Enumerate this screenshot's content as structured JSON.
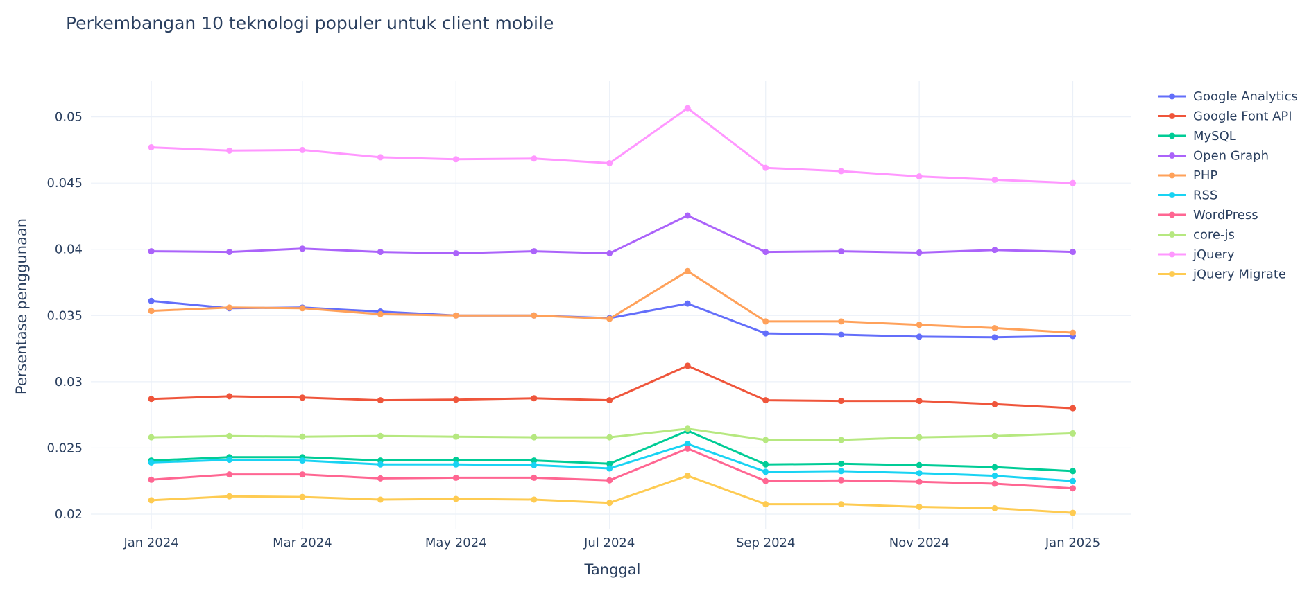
{
  "chart_data": {
    "type": "line",
    "title": "Perkembangan 10 teknologi populer untuk client mobile",
    "xlabel": "Tanggal",
    "ylabel": "Persentase penggunaan",
    "x": [
      "2024-01-01",
      "2024-02-01",
      "2024-03-01",
      "2024-04-01",
      "2024-05-01",
      "2024-06-01",
      "2024-07-01",
      "2024-08-01",
      "2024-09-01",
      "2024-10-01",
      "2024-11-01",
      "2024-12-01",
      "2025-01-01"
    ],
    "x_ticks": [
      {
        "date": "2024-01-01",
        "label": "Jan 2024"
      },
      {
        "date": "2024-03-01",
        "label": "Mar 2024"
      },
      {
        "date": "2024-05-01",
        "label": "May 2024"
      },
      {
        "date": "2024-07-01",
        "label": "Jul 2024"
      },
      {
        "date": "2024-09-01",
        "label": "Sep 2024"
      },
      {
        "date": "2024-11-01",
        "label": "Nov 2024"
      },
      {
        "date": "2025-01-01",
        "label": "Jan 2025"
      }
    ],
    "xlim": [
      "2023-12-08",
      "2025-01-24"
    ],
    "ylim": [
      0.0189,
      0.0527
    ],
    "y_ticks": [
      0.02,
      0.025,
      0.03,
      0.035,
      0.04,
      0.045,
      0.05
    ],
    "y_tick_labels": [
      "0.02",
      "0.025",
      "0.03",
      "0.035",
      "0.04",
      "0.045",
      "0.05"
    ],
    "grid": true,
    "legend": "top-right",
    "series": [
      {
        "name": "Google Analytics",
        "color": "#636efa",
        "values": [
          0.0361,
          0.03555,
          0.0356,
          0.0353,
          0.035,
          0.035,
          0.0348,
          0.0359,
          0.03365,
          0.03355,
          0.0334,
          0.03335,
          0.03345
        ]
      },
      {
        "name": "Google Font API",
        "color": "#EF553B",
        "values": [
          0.0287,
          0.0289,
          0.0288,
          0.0286,
          0.02865,
          0.02875,
          0.0286,
          0.0312,
          0.0286,
          0.02855,
          0.02855,
          0.0283,
          0.028
        ]
      },
      {
        "name": "MySQL",
        "color": "#00cc96",
        "values": [
          0.02405,
          0.0243,
          0.0243,
          0.02405,
          0.0241,
          0.02405,
          0.0238,
          0.0263,
          0.02375,
          0.0238,
          0.0237,
          0.02355,
          0.02325
        ]
      },
      {
        "name": "Open Graph",
        "color": "#ab63fa",
        "values": [
          0.03985,
          0.0398,
          0.04005,
          0.0398,
          0.0397,
          0.03985,
          0.0397,
          0.04255,
          0.0398,
          0.03985,
          0.03975,
          0.03995,
          0.0398
        ]
      },
      {
        "name": "PHP",
        "color": "#FFA15A",
        "values": [
          0.03535,
          0.0356,
          0.03555,
          0.0351,
          0.035,
          0.035,
          0.03475,
          0.03835,
          0.03455,
          0.03455,
          0.0343,
          0.03405,
          0.0337
        ]
      },
      {
        "name": "RSS",
        "color": "#19d3f3",
        "values": [
          0.0239,
          0.0241,
          0.02405,
          0.02375,
          0.02375,
          0.0237,
          0.02345,
          0.0253,
          0.0232,
          0.02325,
          0.0231,
          0.0229,
          0.0225
        ]
      },
      {
        "name": "WordPress",
        "color": "#FF6692",
        "values": [
          0.0226,
          0.023,
          0.023,
          0.0227,
          0.02275,
          0.02275,
          0.02255,
          0.02495,
          0.0225,
          0.02255,
          0.02245,
          0.0223,
          0.02195
        ]
      },
      {
        "name": "core-js",
        "color": "#B6E880",
        "values": [
          0.0258,
          0.0259,
          0.02585,
          0.0259,
          0.02585,
          0.0258,
          0.0258,
          0.02645,
          0.0256,
          0.0256,
          0.0258,
          0.0259,
          0.0261
        ]
      },
      {
        "name": "jQuery",
        "color": "#FF97FF",
        "values": [
          0.0477,
          0.04745,
          0.0475,
          0.04695,
          0.0468,
          0.04685,
          0.0465,
          0.05065,
          0.04615,
          0.0459,
          0.0455,
          0.04525,
          0.045
        ]
      },
      {
        "name": "jQuery Migrate",
        "color": "#FECB52",
        "values": [
          0.02105,
          0.02135,
          0.0213,
          0.0211,
          0.02115,
          0.0211,
          0.02085,
          0.0229,
          0.02075,
          0.02075,
          0.02055,
          0.02045,
          0.0201
        ]
      }
    ]
  }
}
